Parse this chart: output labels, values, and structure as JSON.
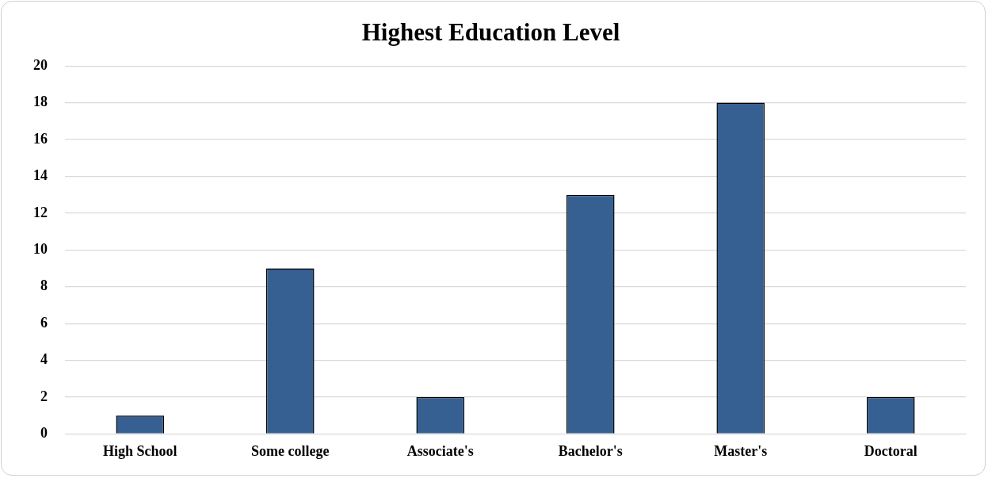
{
  "chart_data": {
    "type": "bar",
    "title": "Highest Education Level",
    "categories": [
      "High School",
      "Some college",
      "Associate's",
      "Bachelor's",
      "Master's",
      "Doctoral"
    ],
    "values": [
      1,
      9,
      2,
      13,
      18,
      2
    ],
    "color": "#376092",
    "ylim": [
      0,
      20
    ],
    "yticks": [
      0,
      2,
      4,
      6,
      8,
      10,
      12,
      14,
      16,
      18,
      20
    ],
    "grid": "y",
    "legend": false
  }
}
